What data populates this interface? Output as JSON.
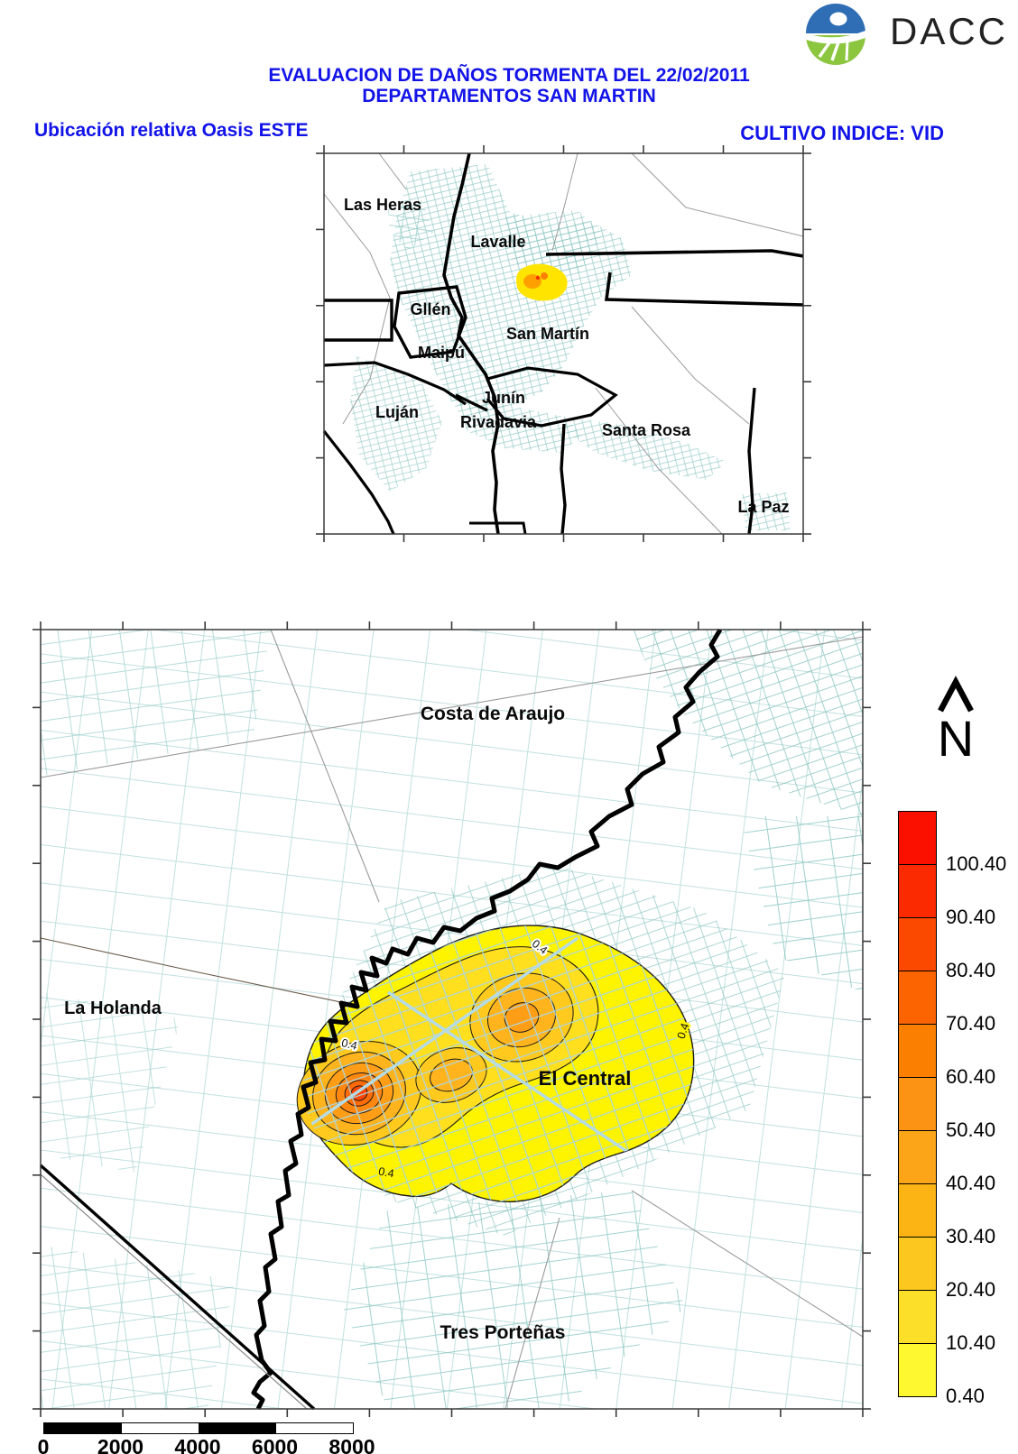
{
  "header": {
    "logo_text": "DACC",
    "title_line1": "EVALUACION DE DAÑOS TORMENTA DEL 22/02/2011",
    "title_line2": "DEPARTAMENTOS SAN MARTIN",
    "subtitle_left": "Ubicación relativa Oasis ESTE",
    "subtitle_right": "CULTIVO INDICE: VID",
    "title_color": "#1213e8"
  },
  "inset_map": {
    "labels": [
      "Las Heras",
      "Lavalle",
      "Gllén",
      "Maipú",
      "San Martín",
      "Junín",
      "Luján",
      "Rivadavia",
      "Santa Rosa",
      "La Paz"
    ]
  },
  "main_map": {
    "labels": [
      "Costa de Araujo",
      "La Holanda",
      "El Central",
      "Tres Porteñas"
    ],
    "contour_value": "0.4",
    "damage_colors": {
      "outer": "#fef400",
      "level2": "#ffdf1e",
      "level3": "#ffc91e",
      "level4": "#ffb41e",
      "level5": "#ff9e16",
      "level6": "#ff8710",
      "level7": "#ff6b08",
      "core": "#ff4403"
    },
    "parcel_color": "#8cc6c2",
    "boundary_color": "#000000"
  },
  "north_arrow": {
    "letter": "N"
  },
  "legend": {
    "values": [
      "100.40",
      "90.40",
      "80.40",
      "70.40",
      "60.40",
      "50.40",
      "40.40",
      "30.40",
      "20.40",
      "10.40",
      "0.40"
    ],
    "colors": [
      "#fb1000",
      "#fb2a00",
      "#fb4a00",
      "#fb6400",
      "#fb7f00",
      "#fc9314",
      "#fca519",
      "#fcb414",
      "#fcc71e",
      "#fcdf28",
      "#fdf830"
    ]
  },
  "scale_bar": {
    "labels": [
      "0",
      "2000",
      "4000",
      "6000",
      "8000"
    ]
  }
}
